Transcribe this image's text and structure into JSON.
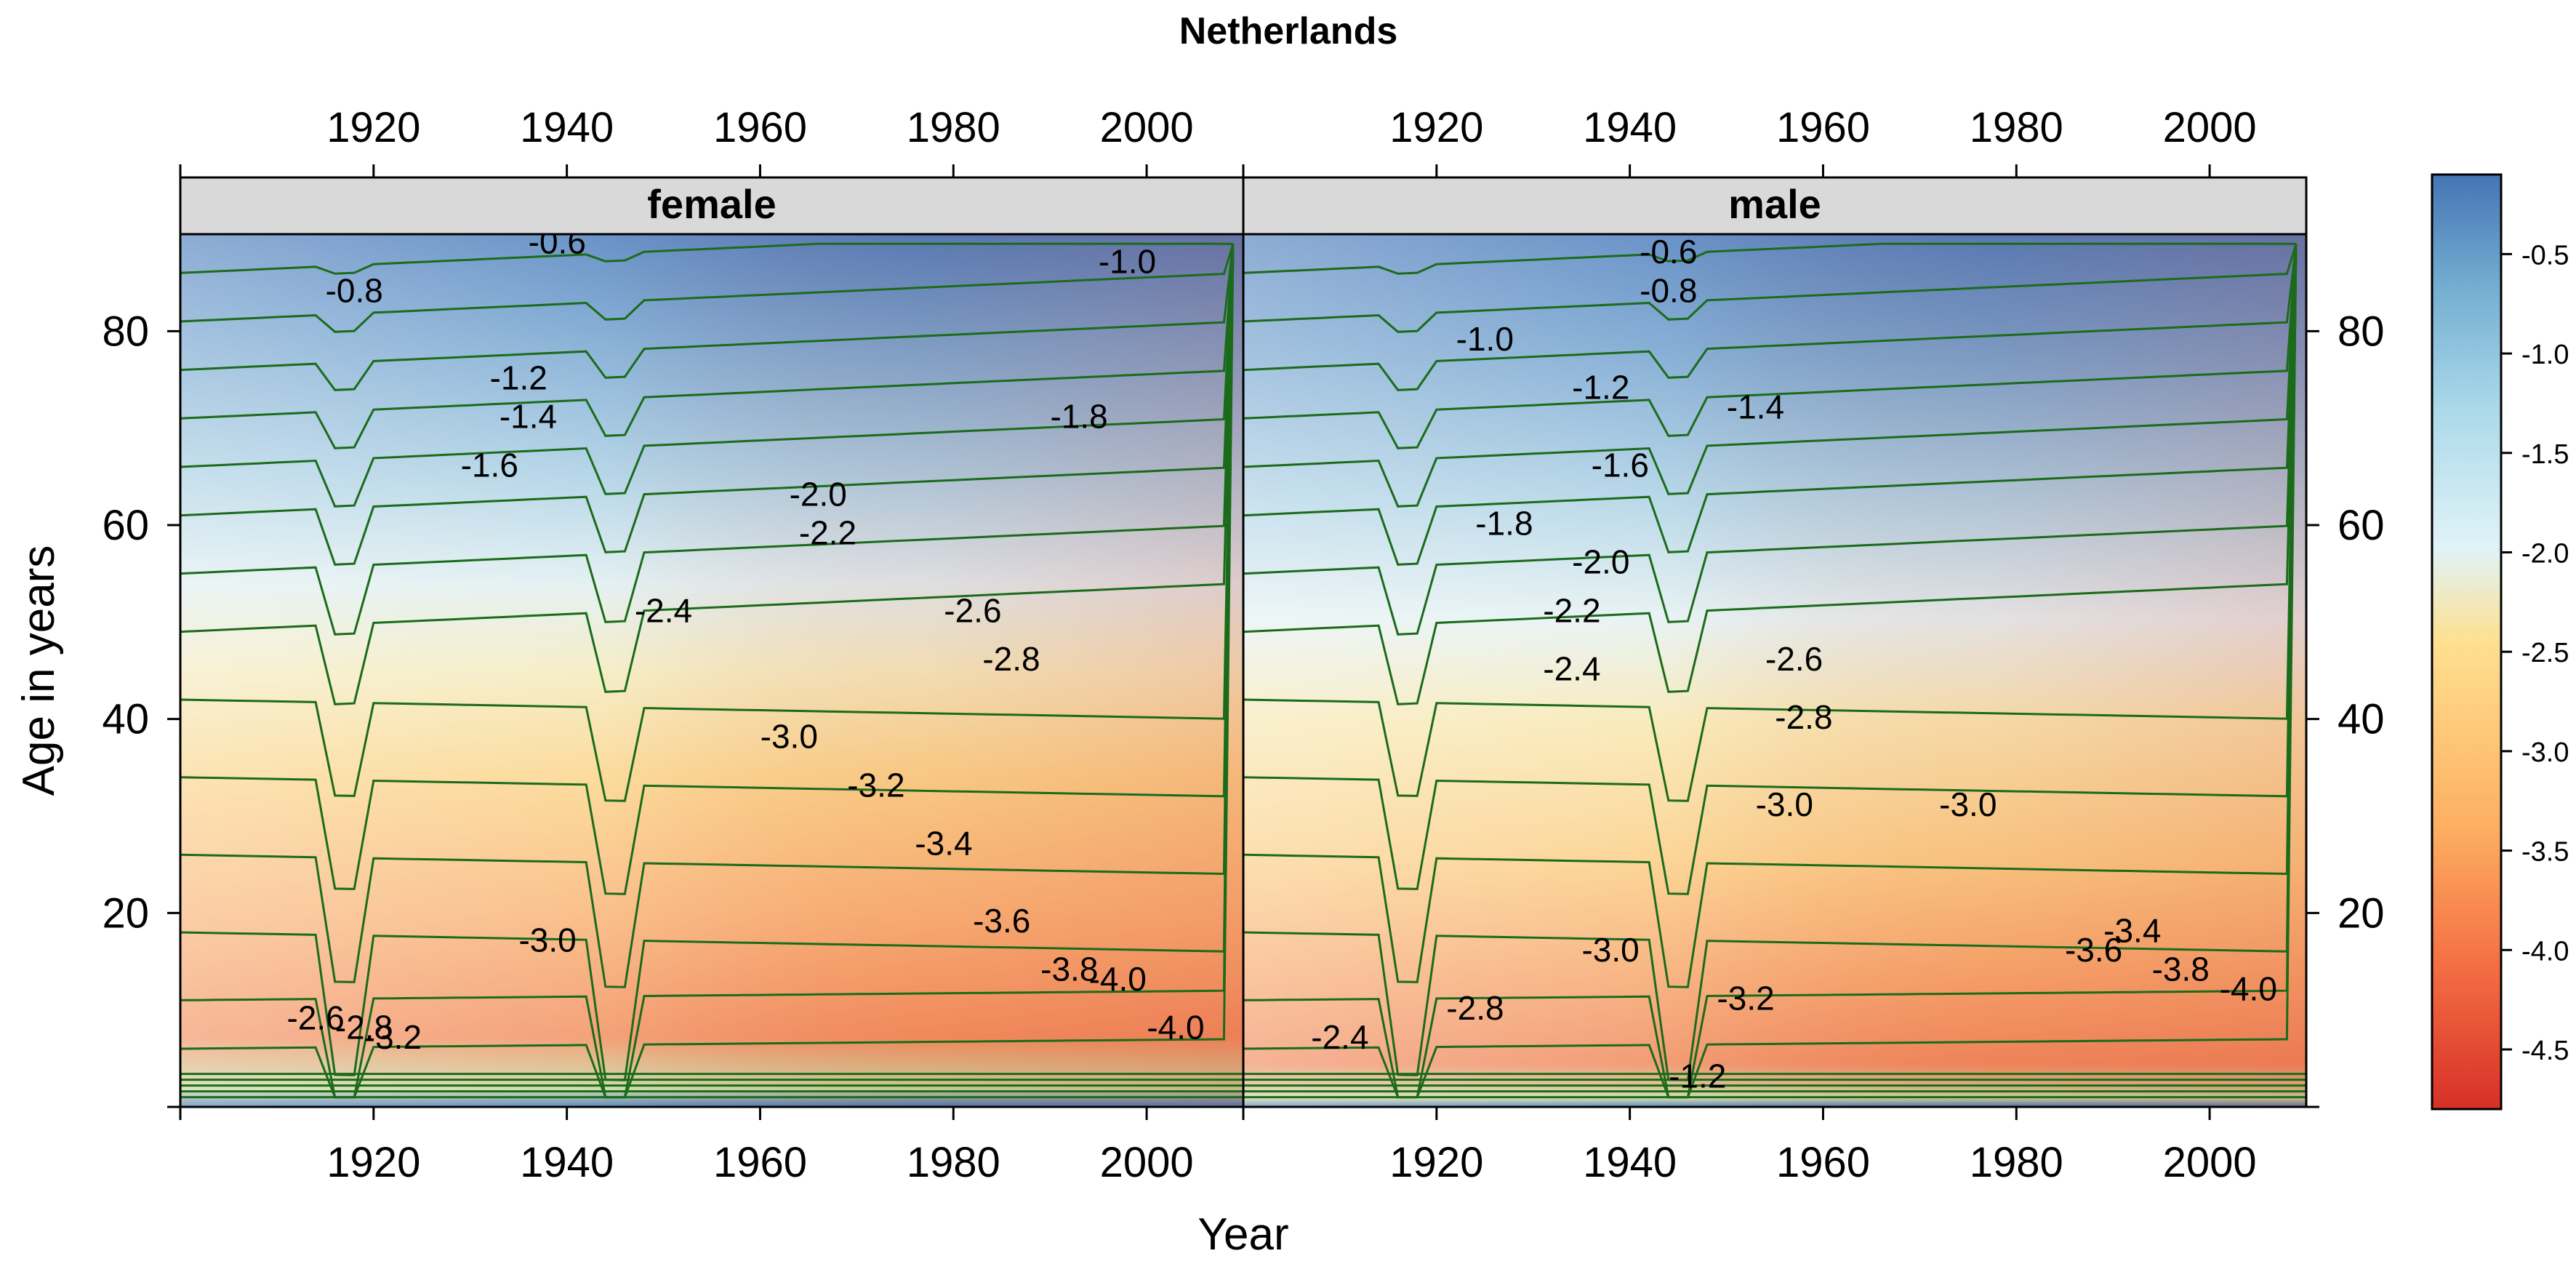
{
  "chart_data": {
    "type": "heatmap",
    "title": "Netherlands",
    "xlabel": "Year",
    "ylabel": "Age in years",
    "xlim": [
      1900,
      2010
    ],
    "ylim": [
      0,
      90
    ],
    "x_ticks": [
      1920,
      1940,
      1960,
      1980,
      2000
    ],
    "y_ticks": [
      20,
      40,
      60,
      80
    ],
    "colorbar": {
      "ticks": [
        "-0.5",
        "-1.0",
        "-1.5",
        "-2.0",
        "-2.5",
        "-3.0",
        "-3.5",
        "-4.0",
        "-4.5"
      ],
      "range": [
        -4.8,
        -0.1
      ],
      "colors": [
        "#d73027",
        "#f46d43",
        "#fdae61",
        "#fee090",
        "#e0f3f8",
        "#abd9e9",
        "#74add1",
        "#4575b4"
      ]
    },
    "panels": [
      {
        "strip": "female",
        "contour_labels": [
          {
            "text": "-0.6",
            "year": 1939,
            "age": 88
          },
          {
            "text": "-0.8",
            "year": 1918,
            "age": 83
          },
          {
            "text": "-1.0",
            "year": 1998,
            "age": 86
          },
          {
            "text": "-1.2",
            "year": 1935,
            "age": 74
          },
          {
            "text": "-1.4",
            "year": 1936,
            "age": 70
          },
          {
            "text": "-1.6",
            "year": 1932,
            "age": 65
          },
          {
            "text": "-1.8",
            "year": 1993,
            "age": 70
          },
          {
            "text": "-2.0",
            "year": 1966,
            "age": 62
          },
          {
            "text": "-2.2",
            "year": 1967,
            "age": 58
          },
          {
            "text": "-2.4",
            "year": 1950,
            "age": 50
          },
          {
            "text": "-2.6",
            "year": 1982,
            "age": 50
          },
          {
            "text": "-2.8",
            "year": 1986,
            "age": 45
          },
          {
            "text": "-3.0",
            "year": 1963,
            "age": 37
          },
          {
            "text": "-3.2",
            "year": 1972,
            "age": 32
          },
          {
            "text": "-3.4",
            "year": 1979,
            "age": 26
          },
          {
            "text": "-3.6",
            "year": 1985,
            "age": 18
          },
          {
            "text": "-3.8",
            "year": 1992,
            "age": 13
          },
          {
            "text": "-4.0",
            "year": 1997,
            "age": 12
          },
          {
            "text": "-4.0",
            "year": 2003,
            "age": 7
          },
          {
            "text": "-3.0",
            "year": 1938,
            "age": 16
          },
          {
            "text": "-2.6",
            "year": 1914,
            "age": 8
          },
          {
            "text": "-2.8",
            "year": 1919,
            "age": 7
          },
          {
            "text": "-3.2",
            "year": 1922,
            "age": 6
          }
        ]
      },
      {
        "strip": "male",
        "contour_labels": [
          {
            "text": "-0.6",
            "year": 1944,
            "age": 87
          },
          {
            "text": "-0.8",
            "year": 1944,
            "age": 83
          },
          {
            "text": "-1.0",
            "year": 1925,
            "age": 78
          },
          {
            "text": "-1.2",
            "year": 1937,
            "age": 73
          },
          {
            "text": "-1.4",
            "year": 1953,
            "age": 71
          },
          {
            "text": "-1.6",
            "year": 1939,
            "age": 65
          },
          {
            "text": "-1.8",
            "year": 1927,
            "age": 59
          },
          {
            "text": "-2.0",
            "year": 1937,
            "age": 55
          },
          {
            "text": "-2.2",
            "year": 1934,
            "age": 50
          },
          {
            "text": "-2.4",
            "year": 1934,
            "age": 44
          },
          {
            "text": "-2.6",
            "year": 1957,
            "age": 45
          },
          {
            "text": "-2.8",
            "year": 1958,
            "age": 39
          },
          {
            "text": "-3.0",
            "year": 1956,
            "age": 30
          },
          {
            "text": "-3.0",
            "year": 1975,
            "age": 30
          },
          {
            "text": "-3.0",
            "year": 1938,
            "age": 15
          },
          {
            "text": "-3.2",
            "year": 1952,
            "age": 10
          },
          {
            "text": "-3.4",
            "year": 1992,
            "age": 17
          },
          {
            "text": "-3.6",
            "year": 1988,
            "age": 15
          },
          {
            "text": "-3.8",
            "year": 1997,
            "age": 13
          },
          {
            "text": "-4.0",
            "year": 2004,
            "age": 11
          },
          {
            "text": "-2.8",
            "year": 1924,
            "age": 9
          },
          {
            "text": "-2.4",
            "year": 1910,
            "age": 6
          },
          {
            "text": "-1.2",
            "year": 1947,
            "age": 2
          }
        ]
      }
    ]
  }
}
